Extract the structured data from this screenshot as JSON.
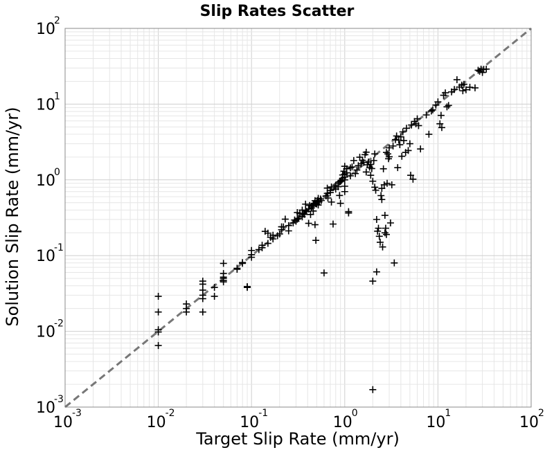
{
  "chart_data": {
    "type": "scatter",
    "title": "Slip Rates Scatter",
    "xlabel": "Target Slip Rate (mm/yr)",
    "ylabel": "Solution Slip Rate (mm/yr)",
    "xscale": "log",
    "yscale": "log",
    "xlim": [
      0.001,
      100
    ],
    "ylim": [
      0.001,
      100
    ],
    "grid": true,
    "marker": "plus",
    "marker_color": "#000000",
    "reference_line": {
      "type": "y=x",
      "style": "dashed",
      "color": "#777777"
    },
    "xticks": [
      {
        "base": "10",
        "exp": "-3",
        "value": 0.001
      },
      {
        "base": "10",
        "exp": "-2",
        "value": 0.01
      },
      {
        "base": "10",
        "exp": "-1",
        "value": 0.1
      },
      {
        "base": "10",
        "exp": "0",
        "value": 1
      },
      {
        "base": "10",
        "exp": "1",
        "value": 10
      },
      {
        "base": "10",
        "exp": "2",
        "value": 100
      }
    ],
    "yticks": [
      {
        "base": "10",
        "exp": "-3",
        "value": 0.001
      },
      {
        "base": "10",
        "exp": "-2",
        "value": 0.01
      },
      {
        "base": "10",
        "exp": "-1",
        "value": 0.1
      },
      {
        "base": "10",
        "exp": "0",
        "value": 1
      },
      {
        "base": "10",
        "exp": "1",
        "value": 10
      },
      {
        "base": "10",
        "exp": "2",
        "value": 100
      }
    ],
    "points": [
      [
        0.01,
        0.029
      ],
      [
        0.01,
        0.018
      ],
      [
        0.01,
        0.0105
      ],
      [
        0.01,
        0.0098
      ],
      [
        0.01,
        0.0065
      ],
      [
        0.02,
        0.023
      ],
      [
        0.02,
        0.02
      ],
      [
        0.02,
        0.018
      ],
      [
        0.03,
        0.046
      ],
      [
        0.03,
        0.042
      ],
      [
        0.03,
        0.035
      ],
      [
        0.03,
        0.03
      ],
      [
        0.03,
        0.027
      ],
      [
        0.03,
        0.018
      ],
      [
        0.04,
        0.038
      ],
      [
        0.04,
        0.029
      ],
      [
        0.05,
        0.079
      ],
      [
        0.05,
        0.058
      ],
      [
        0.05,
        0.052
      ],
      [
        0.05,
        0.05
      ],
      [
        0.05,
        0.047
      ],
      [
        0.05,
        0.045
      ],
      [
        0.07,
        0.066
      ],
      [
        0.07,
        0.068
      ],
      [
        0.09,
        0.038
      ],
      [
        0.09,
        0.039
      ],
      [
        0.08,
        0.079
      ],
      [
        0.08,
        0.081
      ],
      [
        0.1,
        0.117
      ],
      [
        0.1,
        0.103
      ],
      [
        0.1,
        0.095
      ],
      [
        0.12,
        0.12
      ],
      [
        0.13,
        0.127
      ],
      [
        0.13,
        0.137
      ],
      [
        0.14,
        0.209
      ],
      [
        0.15,
        0.145
      ],
      [
        0.15,
        0.198
      ],
      [
        0.16,
        0.174
      ],
      [
        0.17,
        0.166
      ],
      [
        0.17,
        0.186
      ],
      [
        0.19,
        0.183
      ],
      [
        0.2,
        0.193
      ],
      [
        0.21,
        0.22
      ],
      [
        0.21,
        0.24
      ],
      [
        0.22,
        0.239
      ],
      [
        0.23,
        0.303
      ],
      [
        0.25,
        0.249
      ],
      [
        0.25,
        0.212
      ],
      [
        0.28,
        0.27
      ],
      [
        0.29,
        0.295
      ],
      [
        0.3,
        0.284
      ],
      [
        0.31,
        0.302
      ],
      [
        0.31,
        0.37
      ],
      [
        0.32,
        0.31
      ],
      [
        0.33,
        0.357
      ],
      [
        0.35,
        0.325
      ],
      [
        0.35,
        0.399
      ],
      [
        0.36,
        0.36
      ],
      [
        0.37,
        0.35
      ],
      [
        0.38,
        0.396
      ],
      [
        0.38,
        0.478
      ],
      [
        0.39,
        0.383
      ],
      [
        0.41,
        0.412
      ],
      [
        0.41,
        0.267
      ],
      [
        0.42,
        0.46
      ],
      [
        0.43,
        0.349
      ],
      [
        0.44,
        0.426
      ],
      [
        0.45,
        0.45
      ],
      [
        0.46,
        0.476
      ],
      [
        0.46,
        0.388
      ],
      [
        0.47,
        0.49
      ],
      [
        0.48,
        0.531
      ],
      [
        0.48,
        0.256
      ],
      [
        0.49,
        0.486
      ],
      [
        0.49,
        0.159
      ],
      [
        0.5,
        0.48
      ],
      [
        0.5,
        0.5
      ],
      [
        0.51,
        0.532
      ],
      [
        0.52,
        0.57
      ],
      [
        0.52,
        0.465
      ],
      [
        0.53,
        0.512
      ],
      [
        0.55,
        0.56
      ],
      [
        0.56,
        0.534
      ],
      [
        0.6,
        0.059
      ],
      [
        0.63,
        0.613
      ],
      [
        0.65,
        0.663
      ],
      [
        0.65,
        0.778
      ],
      [
        0.66,
        0.576
      ],
      [
        0.7,
        0.679
      ],
      [
        0.7,
        0.725
      ],
      [
        0.72,
        0.805
      ],
      [
        0.72,
        0.509
      ],
      [
        0.75,
        0.261
      ],
      [
        0.77,
        0.805
      ],
      [
        0.8,
        0.756
      ],
      [
        0.8,
        0.85
      ],
      [
        0.85,
        0.812
      ],
      [
        0.85,
        0.903
      ],
      [
        0.88,
        0.94
      ],
      [
        0.88,
        0.622
      ],
      [
        0.9,
        0.953
      ],
      [
        0.9,
        0.49
      ],
      [
        0.92,
        0.982
      ],
      [
        0.95,
        1.05
      ],
      [
        0.95,
        1.16
      ],
      [
        0.98,
        1.3
      ],
      [
        1.0,
        1.0
      ],
      [
        1.0,
        1.09
      ],
      [
        1.0,
        1.19
      ],
      [
        1.0,
        1.51
      ],
      [
        1.0,
        0.824
      ],
      [
        1.0,
        0.7
      ],
      [
        1.05,
        1.24
      ],
      [
        1.05,
        1.4
      ],
      [
        1.1,
        0.365
      ],
      [
        1.1,
        0.381
      ],
      [
        1.15,
        1.13
      ],
      [
        1.15,
        1.44
      ],
      [
        1.2,
        1.48
      ],
      [
        1.25,
        1.8
      ],
      [
        1.3,
        1.21
      ],
      [
        1.35,
        1.35
      ],
      [
        1.4,
        1.54
      ],
      [
        1.45,
        1.99
      ],
      [
        1.5,
        1.63
      ],
      [
        1.55,
        1.81
      ],
      [
        1.6,
        1.7
      ],
      [
        1.65,
        2.15
      ],
      [
        1.7,
        1.27
      ],
      [
        1.7,
        2.32
      ],
      [
        1.75,
        1.58
      ],
      [
        1.8,
        1.72
      ],
      [
        1.85,
        1.47
      ],
      [
        1.9,
        1.6
      ],
      [
        1.9,
        1.15
      ],
      [
        1.95,
        1.41
      ],
      [
        2.0,
        0.046
      ],
      [
        2.0,
        0.0017
      ],
      [
        2.0,
        0.96
      ],
      [
        2.05,
        1.8
      ],
      [
        2.1,
        2.2
      ],
      [
        2.1,
        0.8
      ],
      [
        2.15,
        0.73
      ],
      [
        2.2,
        0.3
      ],
      [
        2.2,
        0.061
      ],
      [
        2.25,
        0.21
      ],
      [
        2.3,
        0.23
      ],
      [
        2.35,
        0.18
      ],
      [
        2.4,
        0.15
      ],
      [
        2.45,
        0.62
      ],
      [
        2.5,
        0.77
      ],
      [
        2.5,
        0.55
      ],
      [
        2.55,
        0.13
      ],
      [
        2.6,
        1.4
      ],
      [
        2.65,
        0.86
      ],
      [
        2.7,
        0.2
      ],
      [
        2.7,
        0.34
      ],
      [
        2.75,
        0.23
      ],
      [
        2.8,
        2.3
      ],
      [
        2.8,
        0.19
      ],
      [
        2.85,
        0.9
      ],
      [
        2.9,
        2.2
      ],
      [
        2.95,
        1.9
      ],
      [
        3.0,
        2.65
      ],
      [
        3.0,
        2.02
      ],
      [
        3.1,
        0.27
      ],
      [
        3.2,
        0.86
      ],
      [
        3.3,
        2.8
      ],
      [
        3.4,
        0.08
      ],
      [
        3.5,
        3.4
      ],
      [
        3.6,
        3.8
      ],
      [
        3.7,
        1.45
      ],
      [
        3.8,
        3.34
      ],
      [
        3.9,
        2.91
      ],
      [
        4.0,
        3.7
      ],
      [
        4.1,
        2.05
      ],
      [
        4.2,
        4.3
      ],
      [
        4.3,
        3.3
      ],
      [
        4.5,
        2.3
      ],
      [
        4.6,
        4.8
      ],
      [
        4.8,
        2.44
      ],
      [
        5.0,
        3.0
      ],
      [
        5.1,
        1.15
      ],
      [
        5.2,
        5.3
      ],
      [
        5.4,
        1.02
      ],
      [
        5.6,
        5.9
      ],
      [
        5.8,
        5.5
      ],
      [
        6.0,
        6.4
      ],
      [
        6.2,
        5.2
      ],
      [
        6.5,
        2.56
      ],
      [
        7.5,
        7.2
      ],
      [
        8.0,
        4.0
      ],
      [
        8.5,
        8.1
      ],
      [
        8.8,
        8.4
      ],
      [
        9.5,
        9.7
      ],
      [
        10.0,
        10.7
      ],
      [
        10.5,
        5.5
      ],
      [
        10.8,
        7.1
      ],
      [
        11.0,
        4.9
      ],
      [
        11.5,
        13.1
      ],
      [
        12.0,
        14.1
      ],
      [
        12.5,
        9.2
      ],
      [
        13.0,
        9.6
      ],
      [
        14.0,
        14.5
      ],
      [
        15.0,
        15.6
      ],
      [
        16.0,
        21.0
      ],
      [
        17.0,
        16.8
      ],
      [
        18.0,
        17.8
      ],
      [
        18.5,
        15.0
      ],
      [
        19.0,
        18.3
      ],
      [
        20.0,
        15.5
      ],
      [
        22.0,
        16.7
      ],
      [
        25.0,
        16.4
      ],
      [
        27.0,
        28.0
      ],
      [
        28.0,
        27.2
      ],
      [
        29.0,
        29.0
      ],
      [
        30.0,
        26.2
      ],
      [
        31.0,
        28.8
      ],
      [
        33.0,
        29.0
      ]
    ]
  }
}
